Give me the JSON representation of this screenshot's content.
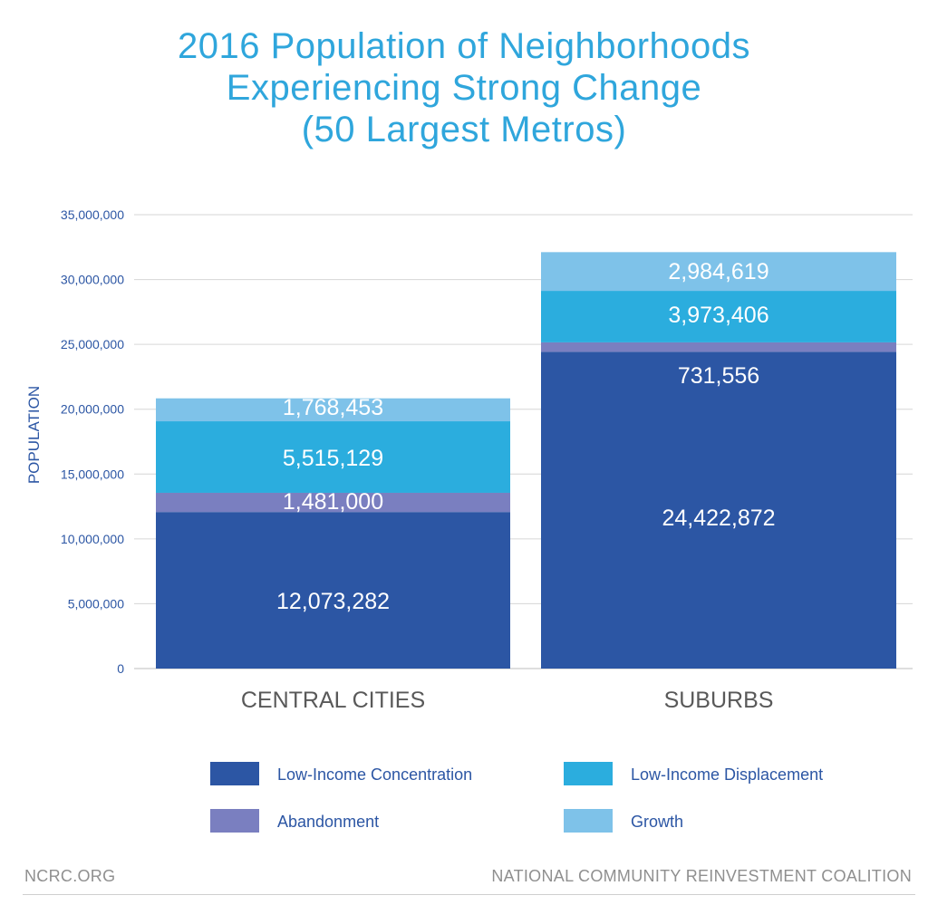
{
  "title_lines": [
    "2016 Population of Neighborhoods",
    "Experiencing Strong Change",
    "(50 Largest Metros)"
  ],
  "chart_data": {
    "type": "bar",
    "stacked": true,
    "title": "2016 Population of Neighborhoods Experiencing Strong Change (50 Largest Metros)",
    "ylabel": "POPULATION",
    "xlabel": "",
    "categories": [
      "CENTRAL CITIES",
      "SUBURBS"
    ],
    "ylim": [
      0,
      35000000
    ],
    "yticks": [
      0,
      5000000,
      10000000,
      15000000,
      20000000,
      25000000,
      30000000,
      35000000
    ],
    "ytick_labels": [
      "0",
      "5,000,000",
      "10,000,000",
      "15,000,000",
      "20,000,000",
      "25,000,000",
      "30,000,000",
      "35,000,000"
    ],
    "grid": true,
    "legend_position": "bottom",
    "series": [
      {
        "name": "Low-Income Concentration",
        "color": "#2c56a4",
        "values": [
          12073282,
          24422872
        ],
        "labels": [
          "12,073,282",
          "24,422,872"
        ]
      },
      {
        "name": "Abandonment",
        "color": "#7a7fc0",
        "values": [
          1481000,
          731556
        ],
        "labels": [
          "1,481,000",
          "731,556"
        ]
      },
      {
        "name": "Low-Income Displacement",
        "color": "#2badde",
        "values": [
          5515129,
          3973406
        ],
        "labels": [
          "5,515,129",
          "3,973,406"
        ]
      },
      {
        "name": "Growth",
        "color": "#7ec2e9",
        "values": [
          1768453,
          2984619
        ],
        "labels": [
          "1,768,453",
          "2,984,619"
        ]
      }
    ]
  },
  "footer": {
    "left": "NCRC.ORG",
    "right": "NATIONAL COMMUNITY REINVESTMENT COALITION"
  }
}
